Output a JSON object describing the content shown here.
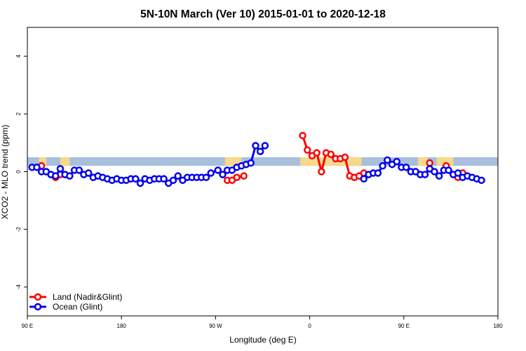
{
  "chart_data": {
    "type": "line",
    "title": "5N-10N March (Ver 10)   2015-01-01 to 2020-12-18",
    "xlabel": "Longitude (deg E)",
    "ylabel": "XCO2 - MLO trend (ppm)",
    "xlim": [
      -1,
      99
    ],
    "ylim": [
      -5,
      5
    ],
    "x_ticks": [
      {
        "pos": -1,
        "label": "90 E"
      },
      {
        "pos": 19,
        "label": "180"
      },
      {
        "pos": 39,
        "label": "90 W"
      },
      {
        "pos": 59,
        "label": "0"
      },
      {
        "pos": 79,
        "label": "90 E"
      },
      {
        "pos": 99,
        "label": "180"
      }
    ],
    "y_ticks": [
      -4,
      -2,
      0,
      2,
      4
    ],
    "grid": false,
    "legend_position": "bottom-left",
    "band": {
      "y_min": 0.2,
      "y_max": 0.5,
      "color": "#a9c0dd",
      "land_color": "#f7d98b"
    },
    "land_segments": [
      [
        1.5,
        3
      ],
      [
        6,
        8
      ],
      [
        41,
        44.5
      ],
      [
        57,
        70
      ],
      [
        82,
        84
      ],
      [
        86,
        89.5
      ]
    ],
    "series": [
      {
        "name": "Land (Nadir&Glint)",
        "color": "#ff0000",
        "points": [
          [
            2,
            0.2
          ],
          [
            5,
            -0.2
          ],
          [
            6,
            -0.1
          ],
          [
            7,
            -0.1
          ],
          [
            41.5,
            -0.3
          ],
          [
            42.5,
            -0.3
          ],
          [
            43.5,
            -0.2
          ],
          [
            45,
            -0.15
          ],
          [
            57.5,
            1.25
          ],
          [
            58.5,
            0.75
          ],
          [
            59.5,
            0.55
          ],
          [
            60.5,
            0.65
          ],
          [
            61.5,
            0.0
          ],
          [
            62.5,
            0.65
          ],
          [
            63.5,
            0.6
          ],
          [
            64.5,
            0.45
          ],
          [
            65.5,
            0.45
          ],
          [
            66.5,
            0.5
          ],
          [
            67.5,
            -0.15
          ],
          [
            68.5,
            -0.2
          ],
          [
            69.5,
            -0.15
          ],
          [
            70.5,
            -0.05
          ],
          [
            84.5,
            0.3
          ],
          [
            88,
            0.2
          ],
          [
            90.5,
            -0.2
          ],
          [
            91.5,
            -0.05
          ]
        ]
      },
      {
        "name": "Ocean (Glint)",
        "color": "#0000ee",
        "points": [
          [
            0,
            0.15
          ],
          [
            1,
            0.15
          ],
          [
            2,
            0.0
          ],
          [
            3,
            0.0
          ],
          [
            4,
            -0.1
          ],
          [
            5,
            -0.15
          ],
          [
            6,
            0.1
          ],
          [
            7,
            -0.1
          ],
          [
            8,
            -0.15
          ],
          [
            9,
            0.05
          ],
          [
            10,
            0.05
          ],
          [
            11,
            -0.1
          ],
          [
            12,
            -0.05
          ],
          [
            13,
            -0.2
          ],
          [
            14,
            -0.15
          ],
          [
            15,
            -0.2
          ],
          [
            16,
            -0.25
          ],
          [
            17,
            -0.3
          ],
          [
            18,
            -0.25
          ],
          [
            19,
            -0.3
          ],
          [
            20,
            -0.3
          ],
          [
            21,
            -0.25
          ],
          [
            22,
            -0.25
          ],
          [
            23,
            -0.4
          ],
          [
            24,
            -0.25
          ],
          [
            25,
            -0.3
          ],
          [
            26,
            -0.25
          ],
          [
            27,
            -0.25
          ],
          [
            28,
            -0.25
          ],
          [
            29,
            -0.4
          ],
          [
            30,
            -0.3
          ],
          [
            31,
            -0.15
          ],
          [
            32,
            -0.3
          ],
          [
            33,
            -0.2
          ],
          [
            34,
            -0.2
          ],
          [
            35,
            -0.2
          ],
          [
            36,
            -0.2
          ],
          [
            37,
            -0.2
          ],
          [
            38,
            -0.05
          ],
          [
            39.5,
            0.05
          ],
          [
            40.5,
            -0.1
          ],
          [
            41.5,
            0.05
          ],
          [
            42.5,
            0.05
          ],
          [
            43.5,
            0.15
          ],
          [
            44.5,
            0.2
          ],
          [
            45.5,
            0.25
          ],
          [
            46.5,
            0.3
          ],
          [
            47.5,
            0.9
          ],
          [
            48.5,
            0.7
          ],
          [
            49.5,
            0.9
          ],
          [
            70.5,
            -0.25
          ],
          [
            71.5,
            -0.1
          ],
          [
            72.5,
            -0.05
          ],
          [
            73.5,
            -0.05
          ],
          [
            74.5,
            0.2
          ],
          [
            75.5,
            0.4
          ],
          [
            76.5,
            0.25
          ],
          [
            77.5,
            0.35
          ],
          [
            78.5,
            0.15
          ],
          [
            79.5,
            0.15
          ],
          [
            80.5,
            0.0
          ],
          [
            81.5,
            0.0
          ],
          [
            82.5,
            -0.1
          ],
          [
            83.5,
            -0.1
          ],
          [
            84.5,
            0.1
          ],
          [
            85.5,
            0.0
          ],
          [
            86.5,
            -0.15
          ],
          [
            87.5,
            0.05
          ],
          [
            88.5,
            0.05
          ],
          [
            89.5,
            -0.1
          ],
          [
            90.5,
            -0.05
          ],
          [
            91.5,
            -0.2
          ],
          [
            92.5,
            -0.15
          ],
          [
            93.5,
            -0.2
          ],
          [
            94.5,
            -0.25
          ],
          [
            95.5,
            -0.3
          ]
        ]
      }
    ]
  }
}
